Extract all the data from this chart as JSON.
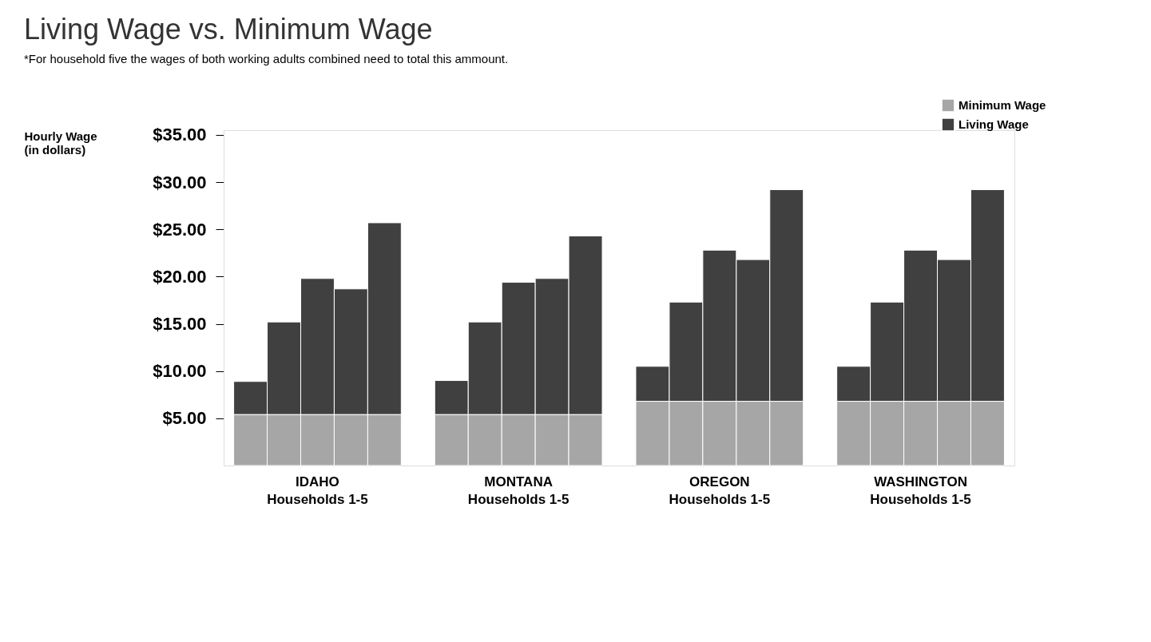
{
  "chart_data": {
    "type": "bar",
    "title": "Living Wage vs. Minimum Wage",
    "subtitle": "*For household five the wages of both working adults combined need to total this ammount.",
    "ylabel": "Hourly Wage\n(in dollars)",
    "categories": [
      null,
      null,
      "IDAHO\nHouseholds 1-5",
      null,
      null,
      null,
      null,
      null,
      "MONTANA\nHouseholds 1-5",
      null,
      null,
      null,
      null,
      null,
      "OREGON\nHouseholds 1-5",
      null,
      null,
      null,
      null,
      null,
      "WASHINGTON\nHouseholds 1-5",
      null,
      null
    ],
    "stacked": true,
    "series": [
      {
        "name": "Minimum Wage",
        "color": "#a6a6a6",
        "values": [
          5.4,
          5.4,
          5.4,
          5.4,
          5.4,
          null,
          5.4,
          5.4,
          5.4,
          5.4,
          5.4,
          null,
          6.8,
          6.8,
          6.8,
          6.8,
          6.8,
          null,
          6.8,
          6.8,
          6.8,
          6.8,
          6.8
        ]
      },
      {
        "name": "Living Wage",
        "color": "#404040",
        "values": [
          3.5,
          9.8,
          14.4,
          13.3,
          20.3,
          null,
          3.6,
          9.8,
          14.0,
          14.4,
          18.9,
          null,
          3.7,
          10.5,
          16.0,
          15.0,
          22.4,
          null,
          3.7,
          10.5,
          16.0,
          15.0,
          22.4
        ]
      }
    ],
    "ylim": [
      0,
      35.5
    ],
    "yticks": [
      {
        "value": 5,
        "label": "$5.00"
      },
      {
        "value": 10,
        "label": "$10.00"
      },
      {
        "value": 15,
        "label": "$15.00"
      },
      {
        "value": 20,
        "label": "$20.00"
      },
      {
        "value": 25,
        "label": "$25.00"
      },
      {
        "value": 30,
        "label": "$30.00"
      },
      {
        "value": 35,
        "label": "$35.00"
      }
    ],
    "grid": false,
    "legend": "top right"
  }
}
